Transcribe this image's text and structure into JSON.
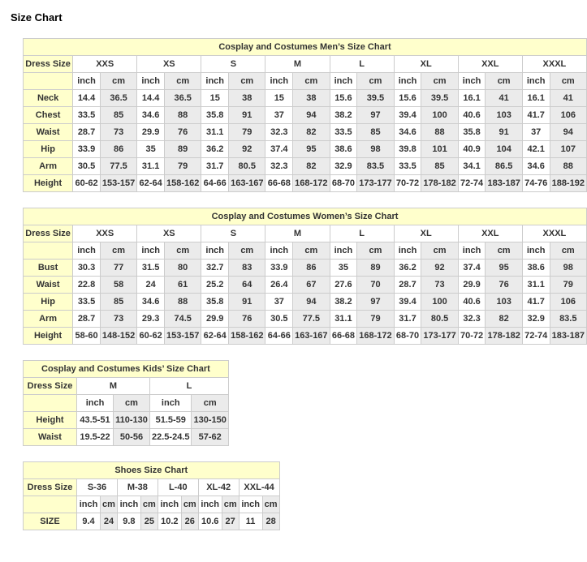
{
  "page_title": "Size Chart",
  "colors": {
    "title_bg": "#FFFFCC",
    "label_bg": "#FFFFCC",
    "inch_bg": "#FFFFFF",
    "cm_bg": "#EBEBEB",
    "grid": "#CCCCCC",
    "text": "#333333"
  },
  "unit_headers": [
    "inch",
    "cm"
  ],
  "tables": [
    {
      "id": "mens",
      "kind": "large",
      "title": "Cosplay and Costumes Men’s Size Chart",
      "label_header": "Dress Size",
      "sizes": [
        "XXS",
        "XS",
        "S",
        "M",
        "L",
        "XL",
        "XXL",
        "XXXL"
      ],
      "rows": [
        {
          "label": "Neck",
          "values": [
            "14.4",
            "36.5",
            "14.4",
            "36.5",
            "15",
            "38",
            "15",
            "38",
            "15.6",
            "39.5",
            "15.6",
            "39.5",
            "16.1",
            "41",
            "16.1",
            "41"
          ]
        },
        {
          "label": "Chest",
          "values": [
            "33.5",
            "85",
            "34.6",
            "88",
            "35.8",
            "91",
            "37",
            "94",
            "38.2",
            "97",
            "39.4",
            "100",
            "40.6",
            "103",
            "41.7",
            "106"
          ]
        },
        {
          "label": "Waist",
          "values": [
            "28.7",
            "73",
            "29.9",
            "76",
            "31.1",
            "79",
            "32.3",
            "82",
            "33.5",
            "85",
            "34.6",
            "88",
            "35.8",
            "91",
            "37",
            "94"
          ]
        },
        {
          "label": "Hip",
          "values": [
            "33.9",
            "86",
            "35",
            "89",
            "36.2",
            "92",
            "37.4",
            "95",
            "38.6",
            "98",
            "39.8",
            "101",
            "40.9",
            "104",
            "42.1",
            "107"
          ]
        },
        {
          "label": "Arm",
          "values": [
            "30.5",
            "77.5",
            "31.1",
            "79",
            "31.7",
            "80.5",
            "32.3",
            "82",
            "32.9",
            "83.5",
            "33.5",
            "85",
            "34.1",
            "86.5",
            "34.6",
            "88"
          ]
        },
        {
          "label": "Height",
          "values": [
            "60-62",
            "153-157",
            "62-64",
            "158-162",
            "64-66",
            "163-167",
            "66-68",
            "168-172",
            "68-70",
            "173-177",
            "70-72",
            "178-182",
            "72-74",
            "183-187",
            "74-76",
            "188-192"
          ]
        }
      ]
    },
    {
      "id": "womens",
      "kind": "large",
      "title": "Cosplay and Costumes Women’s Size Chart",
      "label_header": "Dress Size",
      "sizes": [
        "XXS",
        "XS",
        "S",
        "M",
        "L",
        "XL",
        "XXL",
        "XXXL"
      ],
      "rows": [
        {
          "label": "Bust",
          "values": [
            "30.3",
            "77",
            "31.5",
            "80",
            "32.7",
            "83",
            "33.9",
            "86",
            "35",
            "89",
            "36.2",
            "92",
            "37.4",
            "95",
            "38.6",
            "98"
          ]
        },
        {
          "label": "Waist",
          "values": [
            "22.8",
            "58",
            "24",
            "61",
            "25.2",
            "64",
            "26.4",
            "67",
            "27.6",
            "70",
            "28.7",
            "73",
            "29.9",
            "76",
            "31.1",
            "79"
          ]
        },
        {
          "label": "Hip",
          "values": [
            "33.5",
            "85",
            "34.6",
            "88",
            "35.8",
            "91",
            "37",
            "94",
            "38.2",
            "97",
            "39.4",
            "100",
            "40.6",
            "103",
            "41.7",
            "106"
          ]
        },
        {
          "label": "Arm",
          "values": [
            "28.7",
            "73",
            "29.3",
            "74.5",
            "29.9",
            "76",
            "30.5",
            "77.5",
            "31.1",
            "79",
            "31.7",
            "80.5",
            "32.3",
            "82",
            "32.9",
            "83.5"
          ]
        },
        {
          "label": "Height",
          "values": [
            "58-60",
            "148-152",
            "60-62",
            "153-157",
            "62-64",
            "158-162",
            "64-66",
            "163-167",
            "66-68",
            "168-172",
            "68-70",
            "173-177",
            "70-72",
            "178-182",
            "72-74",
            "183-187"
          ]
        }
      ]
    },
    {
      "id": "kids",
      "kind": "kids",
      "title": "Cosplay and Costumes Kids’ Size Chart",
      "label_header": "Dress Size",
      "sizes": [
        "M",
        "L"
      ],
      "rows": [
        {
          "label": "Height",
          "values": [
            "43.5-51",
            "110-130",
            "51.5-59",
            "130-150"
          ]
        },
        {
          "label": "Waist",
          "values": [
            "19.5-22",
            "50-56",
            "22.5-24.5",
            "57-62"
          ]
        }
      ]
    },
    {
      "id": "shoes",
      "kind": "shoes",
      "title": "Shoes Size Chart",
      "label_header": "Dress Size",
      "sizes": [
        "S-36",
        "M-38",
        "L-40",
        "XL-42",
        "XXL-44"
      ],
      "rows": [
        {
          "label": "SIZE",
          "values": [
            "9.4",
            "24",
            "9.8",
            "25",
            "10.2",
            "26",
            "10.6",
            "27",
            "11",
            "28"
          ]
        }
      ]
    }
  ]
}
